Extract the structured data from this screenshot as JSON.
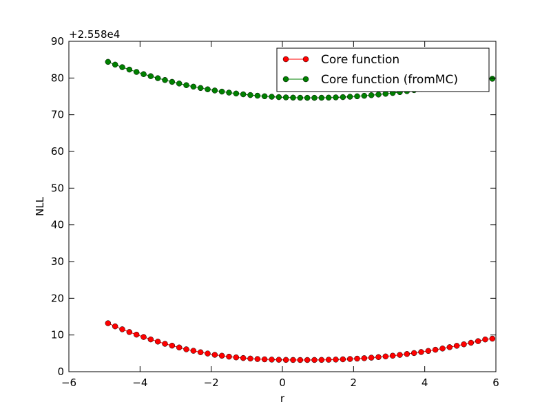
{
  "chart_data": {
    "type": "line",
    "offset_label": "+2.558e4",
    "xlabel": "r",
    "ylabel": "NLL",
    "xlim": [
      -6,
      6
    ],
    "ylim": [
      0,
      90
    ],
    "xticks": [
      -6,
      -4,
      -2,
      0,
      2,
      4,
      6
    ],
    "yticks": [
      0,
      10,
      20,
      30,
      40,
      50,
      60,
      70,
      80,
      90
    ],
    "xtick_labels": [
      "−6",
      "−4",
      "−2",
      "0",
      "2",
      "4",
      "6"
    ],
    "ytick_labels": [
      "0",
      "10",
      "20",
      "30",
      "40",
      "50",
      "60",
      "70",
      "80",
      "90"
    ],
    "legend_position": "top-right",
    "grid": false,
    "x_values": [
      -4.9,
      -4.7,
      -4.5,
      -4.3,
      -4.1,
      -3.9,
      -3.7,
      -3.5,
      -3.3,
      -3.1,
      -2.9,
      -2.7,
      -2.5,
      -2.3,
      -2.1,
      -1.9,
      -1.7,
      -1.5,
      -1.3,
      -1.1,
      -0.9,
      -0.7,
      -0.5,
      -0.3,
      -0.1,
      0.1,
      0.3,
      0.5,
      0.7,
      0.9,
      1.1,
      1.3,
      1.5,
      1.7,
      1.9,
      2.1,
      2.3,
      2.5,
      2.7,
      2.9,
      3.1,
      3.3,
      3.5,
      3.7,
      3.9,
      4.1,
      4.3,
      4.5,
      4.7,
      4.9,
      5.1,
      5.3,
      5.5,
      5.7,
      5.9
    ],
    "series": [
      {
        "name": "Core function",
        "color": "#ff0000",
        "values": [
          13.2,
          12.35,
          11.55,
          10.8,
          10.1,
          9.45,
          8.8,
          8.2,
          7.6,
          7.1,
          6.6,
          6.1,
          5.7,
          5.3,
          4.95,
          4.6,
          4.35,
          4.1,
          3.9,
          3.72,
          3.58,
          3.45,
          3.37,
          3.3,
          3.25,
          3.22,
          3.2,
          3.19,
          3.19,
          3.2,
          3.22,
          3.26,
          3.31,
          3.38,
          3.46,
          3.56,
          3.68,
          3.82,
          3.98,
          4.16,
          4.36,
          4.58,
          4.82,
          5.08,
          5.36,
          5.66,
          5.98,
          6.32,
          6.68,
          7.06,
          7.46,
          7.88,
          8.32,
          8.78,
          9.0
        ]
      },
      {
        "name": "Core function (fromMC)",
        "color": "#008000",
        "values": [
          84.4,
          83.65,
          82.95,
          82.3,
          81.65,
          81.05,
          80.5,
          79.95,
          79.45,
          78.95,
          78.5,
          78.05,
          77.65,
          77.28,
          76.92,
          76.6,
          76.3,
          76.02,
          75.78,
          75.56,
          75.36,
          75.18,
          75.03,
          74.9,
          74.8,
          74.72,
          74.66,
          74.62,
          74.6,
          74.6,
          74.62,
          74.66,
          74.72,
          74.8,
          74.9,
          75.02,
          75.16,
          75.32,
          75.5,
          75.7,
          75.92,
          76.16,
          76.42,
          76.7,
          77.0,
          77.32,
          77.66,
          78.02,
          78.4,
          78.8,
          79.22,
          79.66,
          79.9,
          80.0,
          79.8
        ]
      }
    ]
  }
}
